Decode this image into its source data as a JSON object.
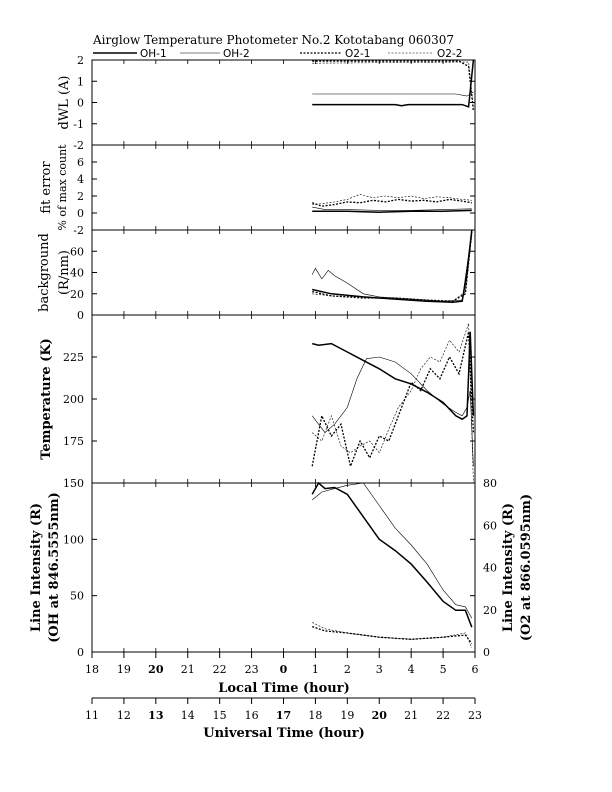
{
  "header": {
    "title": "Airglow Temperature Photometer No.2  Kototabang 060307",
    "legend": [
      "OH-1",
      "OH-2",
      "O2-1",
      "O2-2"
    ]
  },
  "axes": {
    "local_time_label": "Local Time (hour)",
    "universal_time_label": "Universal Time (hour)",
    "local_ticks": [
      "18",
      "19",
      "20",
      "21",
      "22",
      "23",
      "0",
      "1",
      "2",
      "3",
      "4",
      "5",
      "6"
    ],
    "universal_ticks": [
      "11",
      "12",
      "13",
      "14",
      "15",
      "16",
      "17",
      "18",
      "19",
      "20",
      "21",
      "22",
      "23"
    ]
  },
  "chart_data": [
    {
      "type": "line",
      "panel": "dWL",
      "ylabel": "dWL (A)",
      "ylim": [
        -2,
        2
      ],
      "yticks": [
        "-2",
        "-1",
        "0",
        "1",
        "2"
      ],
      "x_unit": "local time (hour, 18-30)",
      "series": [
        {
          "name": "OH-1",
          "x": [
            24.9,
            27.5,
            27.7,
            27.9,
            28.5,
            29.6,
            29.8,
            29.95
          ],
          "y": [
            -0.1,
            -0.1,
            -0.15,
            -0.1,
            -0.1,
            -0.1,
            -0.2,
            2.0
          ]
        },
        {
          "name": "OH-2",
          "x": [
            24.9,
            29.0,
            29.4,
            29.75,
            29.95
          ],
          "y": [
            0.4,
            0.4,
            0.4,
            0.3,
            0.5
          ]
        },
        {
          "name": "O2-1",
          "x": [
            24.9,
            29.5,
            29.8,
            29.95
          ],
          "y": [
            1.95,
            1.95,
            1.7,
            -0.4
          ]
        },
        {
          "name": "O2-2",
          "x": [
            24.9,
            29.4,
            29.8,
            29.95
          ],
          "y": [
            1.85,
            1.9,
            1.9,
            -0.2
          ]
        }
      ]
    },
    {
      "type": "line",
      "panel": "fit_error",
      "ylabel": "fit error",
      "ylabel2": "% of max count",
      "ylim": [
        -2,
        8
      ],
      "yticks": [
        "-2",
        "0",
        "2",
        "4",
        "6"
      ],
      "series": [
        {
          "name": "OH-1",
          "x": [
            24.9,
            26.0,
            27.0,
            28.0,
            29.0,
            29.9
          ],
          "y": [
            0.2,
            0.2,
            0.1,
            0.2,
            0.2,
            0.3
          ]
        },
        {
          "name": "OH-2",
          "x": [
            24.9,
            25.3,
            26.0,
            27.0,
            28.0,
            29.0,
            29.9
          ],
          "y": [
            0.7,
            0.4,
            0.4,
            0.3,
            0.3,
            0.4,
            0.5
          ]
        },
        {
          "name": "O2-1",
          "x": [
            24.9,
            25.2,
            25.6,
            26.0,
            26.4,
            26.8,
            27.2,
            27.6,
            28.0,
            28.4,
            28.8,
            29.2,
            29.6,
            29.9
          ],
          "y": [
            1.2,
            0.8,
            1.0,
            1.3,
            1.2,
            1.5,
            1.3,
            1.6,
            1.4,
            1.5,
            1.3,
            1.6,
            1.4,
            1.2
          ]
        },
        {
          "name": "O2-2",
          "x": [
            24.9,
            25.2,
            25.6,
            26.0,
            26.4,
            26.8,
            27.2,
            27.6,
            28.0,
            28.4,
            28.8,
            29.2,
            29.6,
            29.9
          ],
          "y": [
            1.0,
            1.1,
            1.3,
            1.6,
            2.2,
            1.8,
            2.0,
            1.8,
            2.0,
            1.7,
            1.9,
            1.8,
            1.6,
            1.5
          ]
        }
      ]
    },
    {
      "type": "line",
      "panel": "background",
      "ylabel": "background",
      "ylabel2": "(R/nm)",
      "ylim": [
        0,
        80
      ],
      "yticks": [
        "0",
        "20",
        "40",
        "60"
      ],
      "series": [
        {
          "name": "OH-1",
          "x": [
            24.9,
            25.5,
            26.5,
            27.5,
            28.5,
            29.3,
            29.6,
            29.75,
            29.9
          ],
          "y": [
            24,
            20,
            17,
            15,
            13,
            12,
            13,
            40,
            80
          ]
        },
        {
          "name": "OH-2",
          "x": [
            24.9,
            25.0,
            25.2,
            25.4,
            25.6,
            26.0,
            26.5,
            27.0,
            28.0,
            29.0,
            29.6,
            29.9
          ],
          "y": [
            38,
            44,
            34,
            42,
            37,
            30,
            20,
            17,
            15,
            13,
            14,
            78
          ]
        },
        {
          "name": "O2-1",
          "x": [
            24.9,
            25.5,
            26.5,
            27.5,
            28.5,
            29.3,
            29.7,
            29.9
          ],
          "y": [
            22,
            18,
            16,
            16,
            14,
            13,
            20,
            78
          ]
        },
        {
          "name": "O2-2",
          "x": [
            24.9,
            25.5,
            26.5,
            27.5,
            28.5,
            29.3,
            29.7,
            29.9
          ],
          "y": [
            20,
            18,
            17,
            15,
            14,
            13,
            22,
            76
          ]
        }
      ]
    },
    {
      "type": "line",
      "panel": "temperature",
      "ylabel": "Temperature (K)",
      "ylim": [
        150,
        250
      ],
      "yticks": [
        "175",
        "200",
        "225"
      ],
      "series": [
        {
          "name": "OH-1",
          "x": [
            24.9,
            25.1,
            25.5,
            26.0,
            26.5,
            27.0,
            27.5,
            28.0,
            28.5,
            29.0,
            29.4,
            29.6,
            29.75,
            29.85,
            29.95
          ],
          "y": [
            233,
            232,
            233,
            228,
            223,
            218,
            212,
            209,
            204,
            198,
            190,
            188,
            190,
            240,
            190
          ]
        },
        {
          "name": "OH-2",
          "x": [
            24.9,
            25.1,
            25.3,
            25.6,
            26.0,
            26.3,
            26.6,
            27.0,
            27.5,
            28.0,
            28.5,
            29.0,
            29.4,
            29.6,
            29.75,
            29.85,
            29.95
          ],
          "y": [
            190,
            185,
            180,
            185,
            195,
            212,
            224,
            225,
            222,
            215,
            205,
            197,
            192,
            190,
            195,
            205,
            160
          ]
        },
        {
          "name": "O2-1",
          "x": [
            24.9,
            25.2,
            25.5,
            25.8,
            26.1,
            26.4,
            26.7,
            27.0,
            27.3,
            27.6,
            28.0,
            28.3,
            28.6,
            28.9,
            29.2,
            29.5,
            29.8,
            29.95
          ],
          "y": [
            160,
            190,
            178,
            185,
            160,
            175,
            165,
            178,
            175,
            190,
            210,
            205,
            218,
            212,
            225,
            215,
            240,
            180
          ]
        },
        {
          "name": "O2-2",
          "x": [
            24.9,
            25.2,
            25.5,
            25.8,
            26.1,
            26.4,
            26.7,
            27.0,
            27.3,
            27.6,
            28.0,
            28.3,
            28.6,
            28.9,
            29.2,
            29.5,
            29.8,
            29.95
          ],
          "y": [
            180,
            175,
            190,
            172,
            168,
            172,
            175,
            168,
            182,
            195,
            205,
            218,
            225,
            222,
            235,
            228,
            245,
            150
          ]
        }
      ]
    },
    {
      "type": "line",
      "panel": "line_intensity",
      "ylabel": "Line Intensity (R)",
      "ylabel2": "(OH at 846.5555nm)",
      "ylabel_right": "Line Intensity (R)",
      "ylabel_right2": "(O2 at 866.0595nm)",
      "ylim": [
        0,
        150
      ],
      "ylim_right": [
        0,
        80
      ],
      "yticks": [
        "0",
        "50",
        "100",
        "150"
      ],
      "yticks_right": [
        "0",
        "20",
        "40",
        "60",
        "80"
      ],
      "series": [
        {
          "name": "OH-1",
          "axis": "left",
          "x": [
            24.9,
            25.1,
            25.3,
            25.6,
            26.0,
            26.5,
            27.0,
            27.5,
            28.0,
            28.5,
            29.0,
            29.4,
            29.7,
            29.9
          ],
          "y": [
            140,
            150,
            145,
            146,
            140,
            120,
            100,
            90,
            78,
            62,
            45,
            37,
            37,
            22
          ]
        },
        {
          "name": "OH-2",
          "axis": "left",
          "x": [
            24.9,
            25.2,
            25.6,
            26.0,
            26.5,
            27.0,
            27.5,
            28.0,
            28.5,
            29.0,
            29.4,
            29.7,
            29.9
          ],
          "y": [
            135,
            142,
            145,
            148,
            150,
            130,
            110,
            95,
            78,
            55,
            42,
            40,
            30
          ]
        },
        {
          "name": "O2-1",
          "axis": "right",
          "x": [
            24.9,
            25.3,
            26.0,
            27.0,
            28.0,
            29.0,
            29.7,
            29.9
          ],
          "y": [
            12,
            10,
            9,
            7,
            6,
            7,
            8,
            4
          ]
        },
        {
          "name": "O2-2",
          "axis": "right",
          "x": [
            24.9,
            25.3,
            26.0,
            27.0,
            28.0,
            29.0,
            29.7,
            29.9
          ],
          "y": [
            14,
            11,
            9,
            7,
            6,
            7,
            9,
            2
          ]
        }
      ]
    }
  ]
}
